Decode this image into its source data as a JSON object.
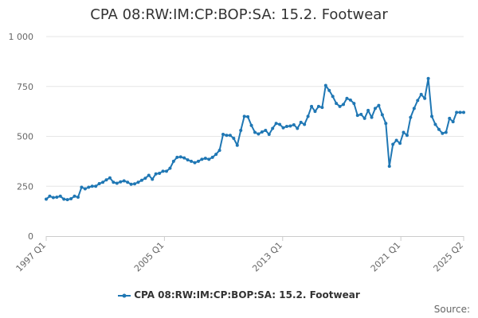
{
  "chart_data": {
    "type": "line",
    "title": "CPA 08:RW:IM:CP:BOP:SA: 15.2. Footwear",
    "xlabel": "",
    "ylabel": "",
    "ylim": [
      0,
      1000
    ],
    "grid": true,
    "y_ticks": [
      0,
      250,
      500,
      750,
      1000
    ],
    "y_tick_labels": [
      "0",
      "250",
      "500",
      "750",
      "1 000"
    ],
    "x_ticks": [
      "1997 Q1",
      "2005 Q1",
      "2013 Q1",
      "2021 Q1",
      "2025 Q2"
    ],
    "x_start": "1997 Q1",
    "x_end": "2025 Q2",
    "legend_position": "bottom-center",
    "series": [
      {
        "name": "CPA 08:RW:IM:CP:BOP:SA: 15.2. Footwear",
        "color": "#1f77b4",
        "values": [
          185,
          200,
          193,
          195,
          200,
          185,
          183,
          187,
          200,
          195,
          245,
          237,
          245,
          250,
          250,
          263,
          270,
          282,
          292,
          270,
          265,
          272,
          277,
          270,
          260,
          262,
          270,
          280,
          290,
          305,
          285,
          312,
          315,
          325,
          325,
          340,
          375,
          395,
          397,
          392,
          382,
          375,
          368,
          375,
          385,
          390,
          385,
          395,
          410,
          430,
          510,
          505,
          505,
          490,
          455,
          530,
          600,
          598,
          555,
          520,
          512,
          522,
          530,
          510,
          540,
          565,
          560,
          543,
          550,
          552,
          558,
          540,
          570,
          560,
          600,
          650,
          625,
          650,
          645,
          755,
          730,
          700,
          665,
          650,
          660,
          690,
          682,
          665,
          605,
          610,
          590,
          630,
          595,
          640,
          655,
          608,
          565,
          350,
          460,
          480,
          465,
          520,
          505,
          595,
          640,
          680,
          710,
          690,
          790,
          600,
          560,
          535,
          515,
          520,
          590,
          573,
          620,
          620,
          620
        ]
      }
    ]
  },
  "legend": {
    "label": "CPA 08:RW:IM:CP:BOP:SA: 15.2. Footwear"
  },
  "source_label": "Source:"
}
